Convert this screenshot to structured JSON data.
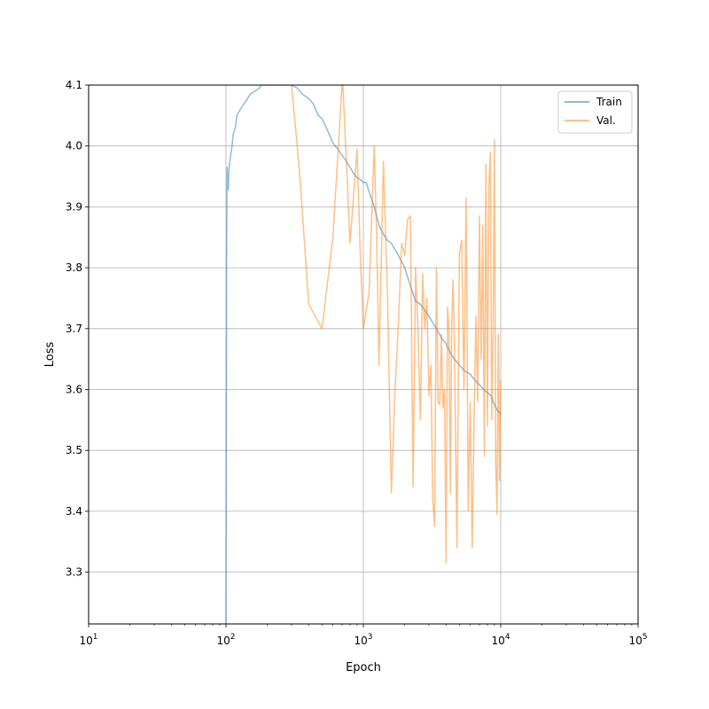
{
  "chart_data": {
    "type": "line",
    "title": "",
    "xlabel": "Epoch",
    "ylabel": "Loss",
    "xscale": "log",
    "xlim": [
      10,
      100000
    ],
    "ylim": [
      3.215,
      4.1
    ],
    "grid": true,
    "legend_position": "top-right",
    "x_ticks": [
      {
        "value": 10,
        "base": "10",
        "exp": "1"
      },
      {
        "value": 100,
        "base": "10",
        "exp": "2"
      },
      {
        "value": 1000,
        "base": "10",
        "exp": "3"
      },
      {
        "value": 10000,
        "base": "10",
        "exp": "4"
      },
      {
        "value": 100000,
        "base": "10",
        "exp": "5"
      }
    ],
    "y_ticks": [
      {
        "value": 3.3,
        "label": "3.3"
      },
      {
        "value": 3.4,
        "label": "3.4"
      },
      {
        "value": 3.5,
        "label": "3.5"
      },
      {
        "value": 3.6,
        "label": "3.6"
      },
      {
        "value": 3.7,
        "label": "3.7"
      },
      {
        "value": 3.8,
        "label": "3.8"
      },
      {
        "value": 3.9,
        "label": "3.9"
      },
      {
        "value": 4.0,
        "label": "4.0"
      },
      {
        "value": 4.1,
        "label": "4.1"
      }
    ],
    "series": [
      {
        "name": "Train",
        "color": "#1f77b4",
        "opacity": 0.5,
        "points": [
          [
            100,
            3.215
          ],
          [
            100.5,
            3.5
          ],
          [
            101,
            3.8
          ],
          [
            101.5,
            3.9
          ],
          [
            102,
            3.965
          ],
          [
            103,
            3.93
          ],
          [
            104,
            3.928
          ],
          [
            105,
            3.96
          ],
          [
            108,
            3.985
          ],
          [
            110,
            3.995
          ],
          [
            113,
            4.02
          ],
          [
            117,
            4.03
          ],
          [
            120,
            4.05
          ],
          [
            127,
            4.06
          ],
          [
            134,
            4.068
          ],
          [
            141,
            4.075
          ],
          [
            150,
            4.085
          ],
          [
            162,
            4.09
          ],
          [
            175,
            4.095
          ],
          [
            180,
            4.1
          ],
          [
            200,
            4.1
          ],
          [
            230,
            4.1
          ],
          [
            300,
            4.1
          ],
          [
            330,
            4.095
          ],
          [
            360,
            4.085
          ],
          [
            400,
            4.078
          ],
          [
            430,
            4.07
          ],
          [
            470,
            4.05
          ],
          [
            500,
            4.045
          ],
          [
            550,
            4.025
          ],
          [
            600,
            4.005
          ],
          [
            650,
            3.995
          ],
          [
            700,
            3.985
          ],
          [
            750,
            3.975
          ],
          [
            800,
            3.965
          ],
          [
            850,
            3.955
          ],
          [
            900,
            3.948
          ],
          [
            950,
            3.945
          ],
          [
            1000,
            3.94
          ],
          [
            1050,
            3.94
          ],
          [
            1100,
            3.925
          ],
          [
            1200,
            3.9
          ],
          [
            1300,
            3.87
          ],
          [
            1400,
            3.855
          ],
          [
            1500,
            3.845
          ],
          [
            1600,
            3.84
          ],
          [
            1700,
            3.83
          ],
          [
            1800,
            3.82
          ],
          [
            2000,
            3.8
          ],
          [
            2200,
            3.77
          ],
          [
            2400,
            3.745
          ],
          [
            2600,
            3.74
          ],
          [
            2800,
            3.73
          ],
          [
            3000,
            3.72
          ],
          [
            3200,
            3.71
          ],
          [
            3400,
            3.7
          ],
          [
            3700,
            3.685
          ],
          [
            4000,
            3.675
          ],
          [
            4300,
            3.66
          ],
          [
            4600,
            3.65
          ],
          [
            5000,
            3.64
          ],
          [
            5500,
            3.63
          ],
          [
            6000,
            3.625
          ],
          [
            6500,
            3.615
          ],
          [
            7000,
            3.608
          ],
          [
            7500,
            3.6
          ],
          [
            8000,
            3.595
          ],
          [
            8500,
            3.59
          ],
          [
            9000,
            3.575
          ],
          [
            9500,
            3.565
          ],
          [
            10000,
            3.56
          ]
        ]
      },
      {
        "name": "Val.",
        "color": "#ff7f0e",
        "opacity": 0.5,
        "points": [
          [
            300,
            4.1
          ],
          [
            330,
            4.0
          ],
          [
            350,
            3.93
          ],
          [
            400,
            3.74
          ],
          [
            500,
            3.7
          ],
          [
            600,
            3.85
          ],
          [
            700,
            4.1
          ],
          [
            710,
            4.1
          ],
          [
            800,
            3.84
          ],
          [
            900,
            3.995
          ],
          [
            950,
            3.82
          ],
          [
            1000,
            3.7
          ],
          [
            1100,
            3.76
          ],
          [
            1200,
            4.0
          ],
          [
            1250,
            3.85
          ],
          [
            1300,
            3.64
          ],
          [
            1400,
            3.975
          ],
          [
            1500,
            3.75
          ],
          [
            1600,
            3.43
          ],
          [
            1700,
            3.6
          ],
          [
            1800,
            3.71
          ],
          [
            1900,
            3.84
          ],
          [
            2000,
            3.82
          ],
          [
            2100,
            3.88
          ],
          [
            2200,
            3.885
          ],
          [
            2300,
            3.44
          ],
          [
            2400,
            3.8
          ],
          [
            2500,
            3.7
          ],
          [
            2600,
            3.55
          ],
          [
            2700,
            3.79
          ],
          [
            2800,
            3.7
          ],
          [
            2900,
            3.75
          ],
          [
            3000,
            3.59
          ],
          [
            3100,
            3.64
          ],
          [
            3200,
            3.42
          ],
          [
            3300,
            3.375
          ],
          [
            3400,
            3.8
          ],
          [
            3500,
            3.58
          ],
          [
            3600,
            3.575
          ],
          [
            3700,
            3.69
          ],
          [
            3800,
            3.57
          ],
          [
            3900,
            3.6
          ],
          [
            4000,
            3.315
          ],
          [
            4100,
            3.735
          ],
          [
            4200,
            3.7
          ],
          [
            4300,
            3.43
          ],
          [
            4400,
            3.71
          ],
          [
            4500,
            3.78
          ],
          [
            4600,
            3.68
          ],
          [
            4800,
            3.34
          ],
          [
            5000,
            3.825
          ],
          [
            5200,
            3.845
          ],
          [
            5400,
            3.6
          ],
          [
            5600,
            3.915
          ],
          [
            5800,
            3.4
          ],
          [
            6000,
            3.58
          ],
          [
            6200,
            3.34
          ],
          [
            6400,
            3.55
          ],
          [
            6600,
            3.72
          ],
          [
            6800,
            3.58
          ],
          [
            7000,
            3.885
          ],
          [
            7200,
            3.65
          ],
          [
            7400,
            3.87
          ],
          [
            7600,
            3.49
          ],
          [
            7800,
            3.97
          ],
          [
            8000,
            3.54
          ],
          [
            8200,
            3.935
          ],
          [
            8400,
            3.99
          ],
          [
            8600,
            3.55
          ],
          [
            8800,
            3.69
          ],
          [
            9000,
            4.01
          ],
          [
            9200,
            3.48
          ],
          [
            9400,
            3.395
          ],
          [
            9600,
            3.69
          ],
          [
            9800,
            3.45
          ],
          [
            10000,
            3.615
          ]
        ]
      }
    ]
  }
}
